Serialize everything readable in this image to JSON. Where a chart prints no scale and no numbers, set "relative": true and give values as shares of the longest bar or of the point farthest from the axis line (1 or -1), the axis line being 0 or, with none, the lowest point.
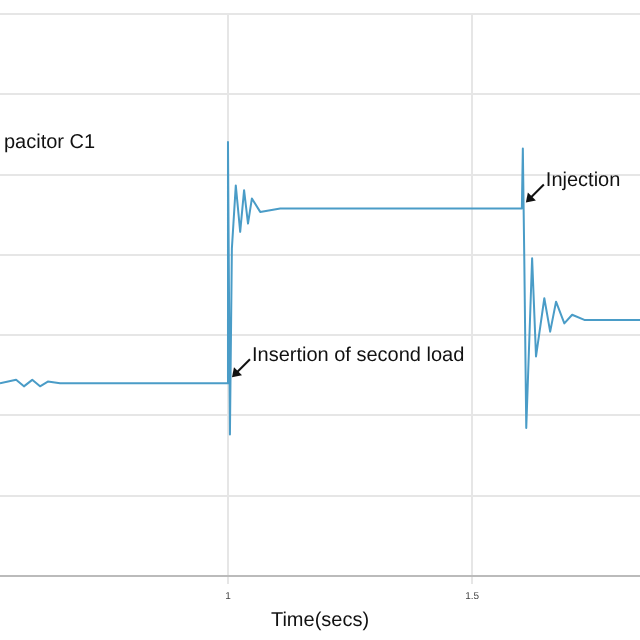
{
  "chart_data": {
    "type": "line",
    "relative": true,
    "xlabel": "Time(secs)",
    "xlim": [
      0.533,
      1.844
    ],
    "xticks": [
      1,
      1.5
    ],
    "grid": true,
    "legend": false,
    "marker": "none",
    "line_style": "solid",
    "series": [
      {
        "color": "#4a9cc7",
        "x": [
          0.533,
          0.566,
          0.582,
          0.599,
          0.615,
          0.631,
          0.656,
          1.0,
          1.0,
          1.004,
          1.008,
          1.016,
          1.025,
          1.033,
          1.041,
          1.049,
          1.066,
          1.107,
          1.602,
          1.604,
          1.607,
          1.611,
          1.623,
          1.631,
          1.648,
          1.66,
          1.672,
          1.689,
          1.705,
          1.73,
          1.844
        ],
        "values": [
          0.444,
          0.452,
          0.437,
          0.452,
          0.437,
          0.448,
          0.444,
          0.444,
          1.0,
          0.326,
          0.755,
          0.9,
          0.793,
          0.889,
          0.812,
          0.87,
          0.839,
          0.847,
          0.847,
          0.985,
          0.728,
          0.341,
          0.732,
          0.506,
          0.64,
          0.563,
          0.632,
          0.582,
          0.602,
          0.59,
          0.59
        ]
      }
    ],
    "annotations": [
      "pacitor C1",
      {
        "text": "Insertion of second load",
        "x": 1.0,
        "y": 0.444
      },
      {
        "text": "Injection",
        "x": 1.602,
        "y": 0.847
      }
    ]
  }
}
